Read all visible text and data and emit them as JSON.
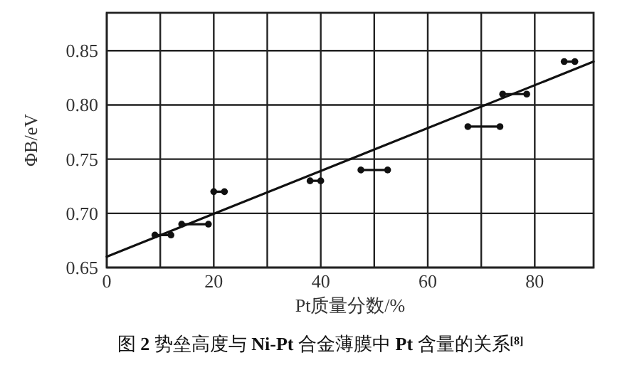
{
  "chart_data": {
    "type": "line",
    "xlabel": "Pt质量分数/%",
    "ylabel": "ΦB/eV",
    "annotations": [
      "图 **2**  势垒高度与 **Ni-Pt** 合金薄膜中 **Pt** 含量的关系$^{[8]}$"
    ],
    "marker": "circle",
    "color": "#111111",
    "series": [
      {
        "x": [
          9,
          12
        ],
        "values": [
          0.68,
          0.68
        ]
      },
      {
        "x": [
          14,
          19
        ],
        "values": [
          0.69,
          0.69
        ]
      },
      {
        "x": [
          20,
          22
        ],
        "values": [
          0.72,
          0.72
        ]
      },
      {
        "x": [
          38,
          40
        ],
        "values": [
          0.73,
          0.73
        ]
      },
      {
        "x": [
          47.5,
          52.5
        ],
        "values": [
          0.74,
          0.74
        ]
      },
      {
        "x": [
          67.5,
          73.5
        ],
        "values": [
          0.78,
          0.78
        ]
      },
      {
        "x": [
          74,
          78.5
        ],
        "values": [
          0.81,
          0.81
        ]
      },
      {
        "x": [
          85.5,
          87.5
        ],
        "values": [
          0.84,
          0.84
        ]
      },
      {
        "marker": "none",
        "x": [
          0,
          91
        ],
        "values": [
          0.66,
          0.84
        ]
      }
    ],
    "xlim": [
      0,
      91
    ],
    "ylim": [
      0.65,
      0.885
    ],
    "xticks": [
      0,
      {
        "value": 10,
        "label": null
      },
      20,
      {
        "value": 30,
        "label": null
      },
      40,
      {
        "value": 50,
        "label": null
      },
      60,
      {
        "value": 70,
        "label": null
      },
      80
    ],
    "yticks": [
      0.65,
      {
        "value": 0.7,
        "label": "0.70"
      },
      0.75,
      {
        "value": 0.8,
        "label": "0.80"
      },
      0.85
    ],
    "grid": true
  }
}
